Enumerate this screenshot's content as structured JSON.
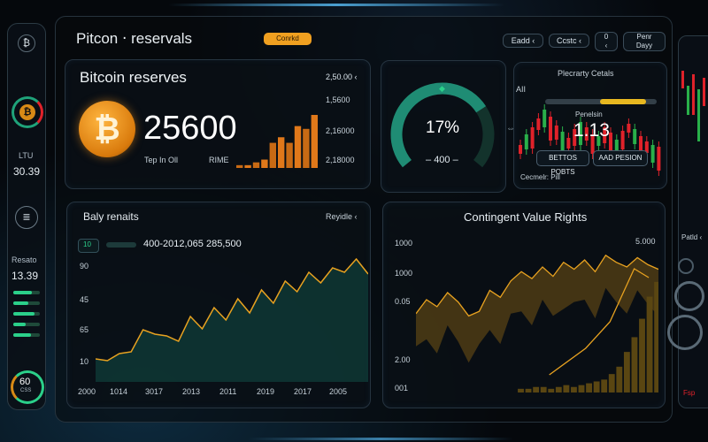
{
  "header": {
    "title": "Pitcon ‧ reservals",
    "badge": "Conrkd",
    "controls": [
      "Eadd ‹",
      "Ccstc ‹",
      "0\n‹",
      "Penr\nDayy"
    ]
  },
  "sidebar": {
    "top_icon": "bitcoin-icon",
    "label1": "LTU",
    "value1": "30.39",
    "label2": "Resato",
    "value2": "13.39",
    "ring_value": "60",
    "ring_sub": "CSS"
  },
  "reserves_card": {
    "title": "Bitcoin reserves",
    "value": "25600",
    "subtitle_left": "Tep In Oll",
    "subtitle_right": "RIME",
    "axis_labels": [
      "2,50.00 ‹",
      "1,5600",
      "2,16000",
      "2,18000"
    ],
    "bars": [
      1,
      1,
      2,
      3,
      9,
      11,
      9,
      15,
      14,
      19
    ]
  },
  "gauge_card": {
    "percent": "17%",
    "value": "400",
    "fraction": 0.72,
    "accent": "#1f8c74"
  },
  "candles_card": {
    "title": "Plecrarty Cetals",
    "label_left": "AII",
    "label_mid": "Penelsin",
    "value": "1.13",
    "btn1": "BETTOS POBTS",
    "btn2": "AAD PESION",
    "footer": "Cecmelr: Pill"
  },
  "line_card": {
    "title": "Baly renaits",
    "dropdown": "Reyidle ‹",
    "toggle_label": "10",
    "range_text": "400-2012,065 285,500",
    "y_labels": [
      "90",
      "45",
      "65",
      "10"
    ],
    "x_labels": [
      "2000",
      "1014",
      "3017",
      "2013",
      "2011",
      "2019",
      "2017",
      "2005"
    ],
    "series": [
      22,
      30,
      28,
      40,
      55,
      60,
      48,
      52,
      70,
      66,
      80,
      76,
      90,
      84,
      100,
      95,
      110,
      108,
      120,
      118,
      125,
      130,
      135,
      128
    ]
  },
  "cvr_card": {
    "title": "Contingent Value Rights",
    "y_labels": [
      "1000",
      "1000",
      "0.05",
      "2.00",
      "001"
    ],
    "top_label": "5.000",
    "series": [
      60,
      72,
      66,
      78,
      70,
      58,
      62,
      80,
      74,
      88,
      96,
      90,
      100,
      92,
      104,
      98,
      106,
      96,
      110,
      104,
      100,
      108,
      102,
      98
    ],
    "bars": [
      2,
      2,
      3,
      3,
      2,
      3,
      4,
      3,
      4,
      5,
      6,
      7,
      10,
      14,
      22,
      30,
      40,
      52,
      60,
      68
    ]
  },
  "right_panel": {
    "label": "Patld ‹",
    "sub": "Fsp"
  },
  "colors": {
    "accent_orange": "#f0921a",
    "accent_green": "#1fa37a",
    "candle_red": "#e0222a",
    "candle_green": "#29b04a"
  }
}
